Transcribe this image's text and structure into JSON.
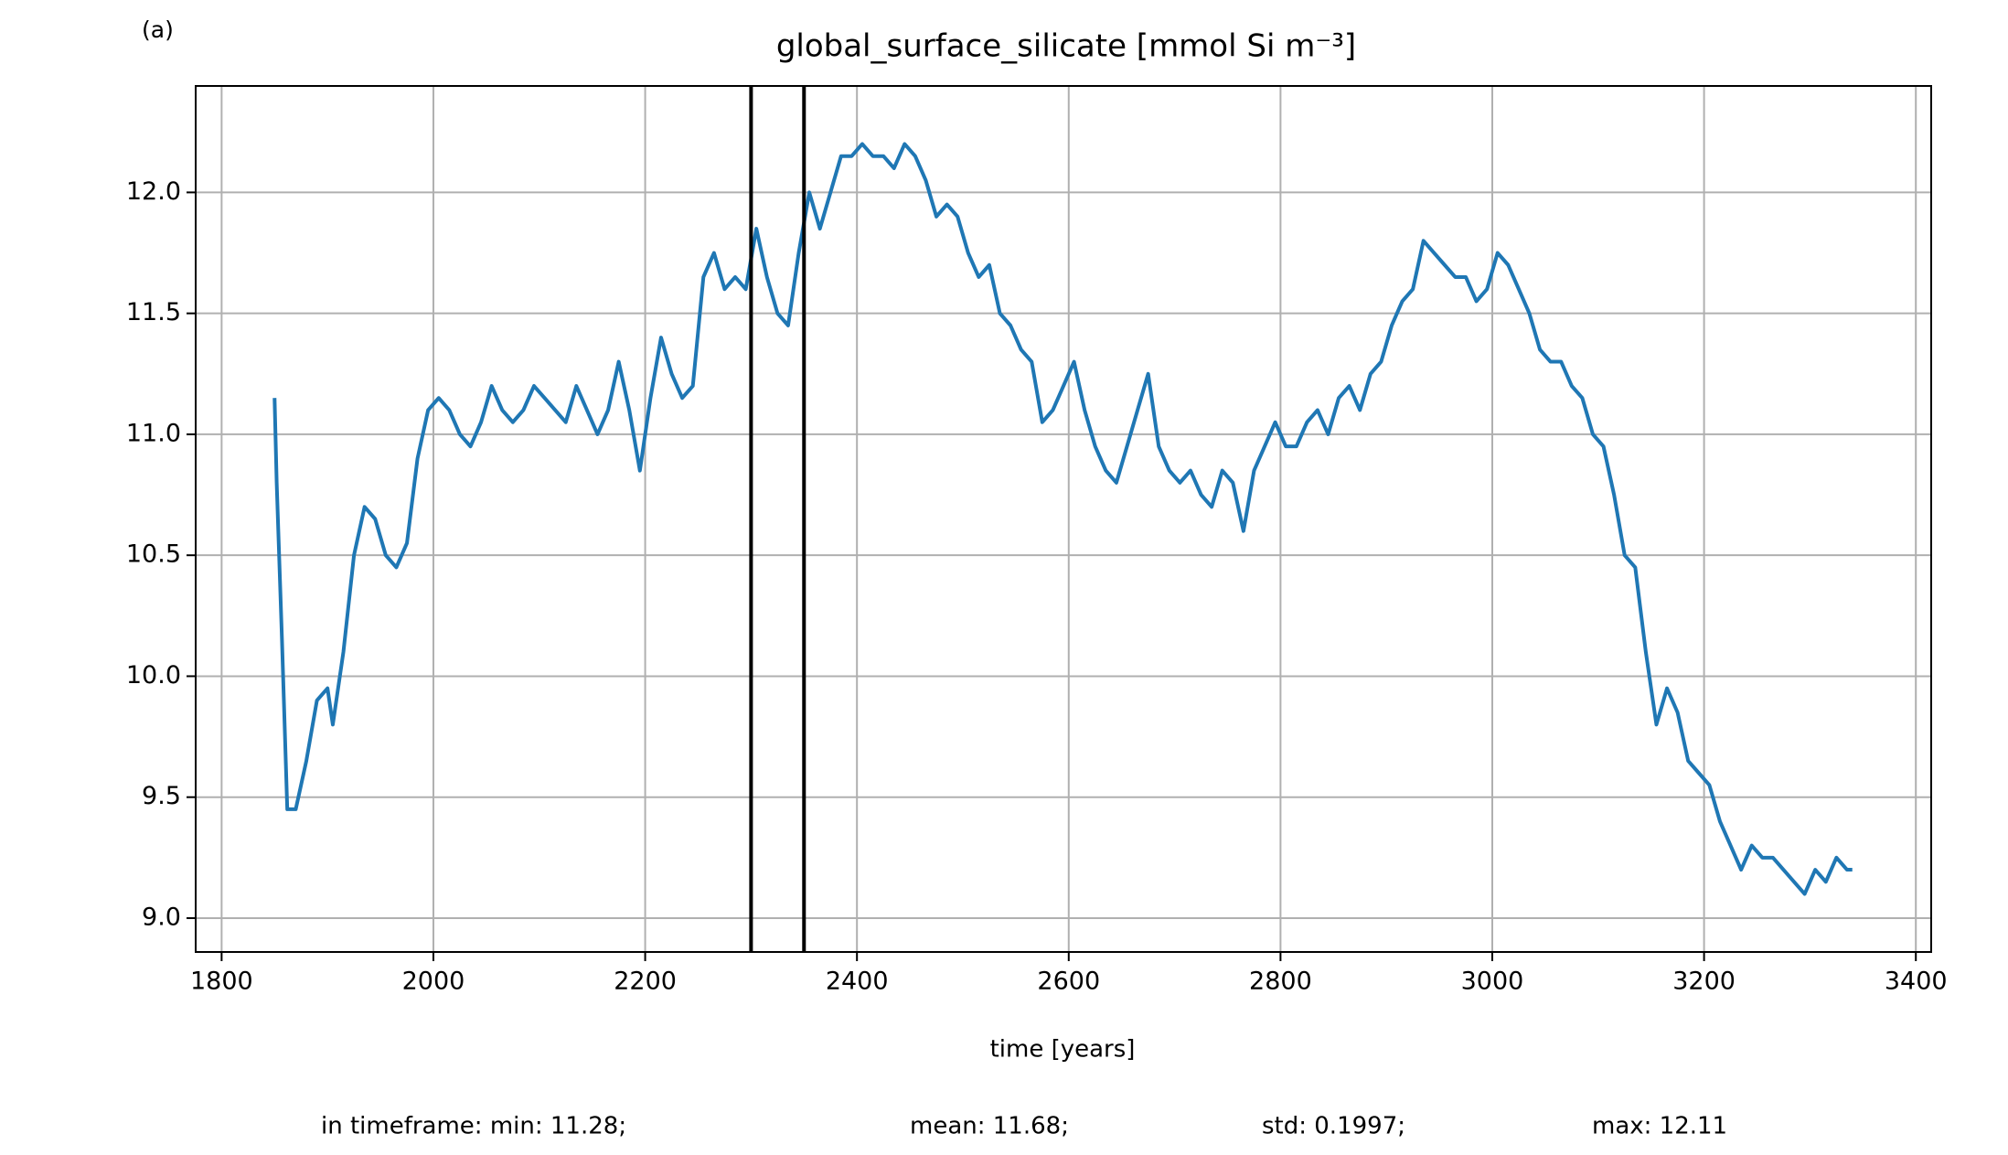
{
  "chart_data": {
    "type": "line",
    "panel_label": "(a)",
    "title": "global_surface_silicate [mmol Si m⁻³]",
    "xlabel": "time [years]",
    "footer": [
      "in timeframe: min: 11.28;",
      "mean: 11.68;",
      "std: 0.1997;",
      "max: 12.11"
    ],
    "xlim": [
      1775.5,
      3414.5
    ],
    "ylim": [
      8.86,
      12.44
    ],
    "xticks": [
      1800,
      2000,
      2200,
      2400,
      2600,
      2800,
      3000,
      3200,
      3400
    ],
    "yticks": [
      {
        "value": 9,
        "label": "9.0"
      },
      9.5,
      {
        "value": 10,
        "label": "10.0"
      },
      10.5,
      {
        "value": 11,
        "label": "11.0"
      },
      11.5,
      {
        "value": 12,
        "label": "12.0"
      }
    ],
    "grid": true,
    "vlines": [
      2300,
      2350
    ],
    "vline_color": "#000000",
    "series": [
      {
        "color": "#1f77b4",
        "x": [
          1850,
          1852,
          1857,
          1862,
          1870,
          1880,
          1890,
          1900,
          1905,
          1915,
          1925,
          1935,
          1945,
          1955,
          1965,
          1975,
          1985,
          1995,
          2005,
          2015,
          2025,
          2035,
          2045,
          2055,
          2065,
          2075,
          2085,
          2095,
          2105,
          2115,
          2125,
          2135,
          2145,
          2155,
          2165,
          2175,
          2185,
          2195,
          2205,
          2215,
          2225,
          2235,
          2245,
          2255,
          2265,
          2275,
          2285,
          2295,
          2305,
          2315,
          2325,
          2335,
          2345,
          2355,
          2365,
          2375,
          2385,
          2395,
          2405,
          2415,
          2425,
          2435,
          2445,
          2455,
          2465,
          2475,
          2485,
          2495,
          2505,
          2515,
          2525,
          2535,
          2545,
          2555,
          2565,
          2575,
          2585,
          2595,
          2605,
          2615,
          2625,
          2635,
          2645,
          2655,
          2665,
          2675,
          2685,
          2695,
          2705,
          2715,
          2725,
          2735,
          2745,
          2755,
          2765,
          2775,
          2785,
          2795,
          2805,
          2815,
          2825,
          2835,
          2845,
          2855,
          2865,
          2875,
          2885,
          2895,
          2905,
          2915,
          2925,
          2935,
          2945,
          2955,
          2965,
          2975,
          2985,
          2995,
          3005,
          3015,
          3025,
          3035,
          3045,
          3055,
          3065,
          3075,
          3085,
          3095,
          3105,
          3115,
          3125,
          3135,
          3145,
          3155,
          3165,
          3175,
          3185,
          3195,
          3205,
          3215,
          3225,
          3235,
          3245,
          3255,
          3265,
          3275,
          3285,
          3295,
          3305,
          3315,
          3325,
          3335,
          3340
        ],
        "values": [
          11.15,
          10.8,
          10.15,
          9.45,
          9.45,
          9.65,
          9.9,
          9.95,
          9.8,
          10.1,
          10.5,
          10.7,
          10.65,
          10.5,
          10.45,
          10.55,
          10.9,
          11.1,
          11.15,
          11.1,
          11.0,
          10.95,
          11.05,
          11.2,
          11.1,
          11.05,
          11.1,
          11.2,
          11.15,
          11.1,
          11.05,
          11.2,
          11.1,
          11.0,
          11.1,
          11.3,
          11.1,
          10.85,
          11.15,
          11.4,
          11.25,
          11.15,
          11.2,
          11.65,
          11.75,
          11.6,
          11.65,
          11.6,
          11.85,
          11.65,
          11.5,
          11.45,
          11.75,
          12.0,
          11.85,
          12.0,
          12.15,
          12.15,
          12.2,
          12.15,
          12.15,
          12.1,
          12.2,
          12.15,
          12.05,
          11.9,
          11.95,
          11.9,
          11.75,
          11.65,
          11.7,
          11.5,
          11.45,
          11.35,
          11.3,
          11.05,
          11.1,
          11.2,
          11.3,
          11.1,
          10.95,
          10.85,
          10.8,
          10.95,
          11.1,
          11.25,
          10.95,
          10.85,
          10.8,
          10.85,
          10.75,
          10.7,
          10.85,
          10.8,
          10.6,
          10.85,
          10.95,
          11.05,
          10.95,
          10.95,
          11.05,
          11.1,
          11.0,
          11.15,
          11.2,
          11.1,
          11.25,
          11.3,
          11.45,
          11.55,
          11.6,
          11.8,
          11.75,
          11.7,
          11.65,
          11.65,
          11.55,
          11.6,
          11.75,
          11.7,
          11.6,
          11.5,
          11.35,
          11.3,
          11.3,
          11.2,
          11.15,
          11.0,
          10.95,
          10.75,
          10.5,
          10.45,
          10.1,
          9.8,
          9.95,
          9.85,
          9.65,
          9.6,
          9.55,
          9.4,
          9.3,
          9.2,
          9.3,
          9.25,
          9.25,
          9.2,
          9.15,
          9.1,
          9.2,
          9.15,
          9.25,
          9.2,
          9.2
        ]
      }
    ]
  }
}
